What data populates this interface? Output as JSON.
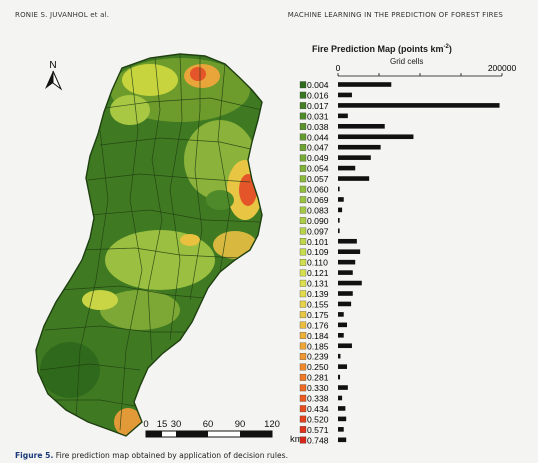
{
  "header": {
    "left": "RONIE S. JUVANHOL et al.",
    "right": "MACHINE LEARNING IN THE PREDICTION OF FOREST FIRES"
  },
  "caption": {
    "label": "Figure 5.",
    "text": "Fire prediction map obtained by application of decision rules."
  },
  "map": {
    "north_label": "N",
    "scale_ticks": [
      "0",
      "15",
      "30",
      "60",
      "90",
      "120"
    ],
    "scale_unit": "km"
  },
  "chart_data": {
    "type": "bar",
    "orientation": "horizontal",
    "title": "Fire Prediction Map (points km",
    "title_exp": "-2",
    "title_close": ")",
    "xlabel": "Grid cells",
    "xlim": [
      0,
      200000
    ],
    "xticks": [
      "0",
      "200000"
    ],
    "categories": [
      "0.004",
      "0.016",
      "0.017",
      "0.031",
      "0.038",
      "0.044",
      "0.047",
      "0.049",
      "0.054",
      "0.057",
      "0.060",
      "0.069",
      "0.083",
      "0.090",
      "0.097",
      "0.101",
      "0.109",
      "0.110",
      "0.121",
      "0.131",
      "0.139",
      "0.155",
      "0.175",
      "0.176",
      "0.184",
      "0.185",
      "0.239",
      "0.250",
      "0.281",
      "0.330",
      "0.338",
      "0.434",
      "0.520",
      "0.571",
      "0.748"
    ],
    "values": [
      65000,
      17000,
      197000,
      12000,
      57000,
      92000,
      52000,
      40000,
      21000,
      38000,
      2000,
      7000,
      5000,
      2000,
      2000,
      23000,
      27000,
      21000,
      18000,
      29000,
      18000,
      16000,
      7000,
      11000,
      7000,
      17000,
      3000,
      11000,
      2500,
      12000,
      5000,
      9000,
      10000,
      7000,
      10000
    ],
    "colors": [
      "#2e6b1f",
      "#3a7722",
      "#447f26",
      "#4f8a2a",
      "#5a932e",
      "#649b31",
      "#6ea334",
      "#77aa37",
      "#80b13a",
      "#89b83d",
      "#92be40",
      "#9bc442",
      "#a4c945",
      "#adce47",
      "#b6d34a",
      "#bfd84b",
      "#c7dc4c",
      "#cfdf4d",
      "#d6e04e",
      "#dde04e",
      "#e2db4b",
      "#e6d347",
      "#e9c942",
      "#ecbe3d",
      "#eeb238",
      "#efa533",
      "#f0972f",
      "#f0892b",
      "#ef7a27",
      "#ed6b24",
      "#eb5c21",
      "#e84e1f",
      "#e4401d",
      "#df331b",
      "#d8261a"
    ],
    "grid": false,
    "legend": "none"
  }
}
